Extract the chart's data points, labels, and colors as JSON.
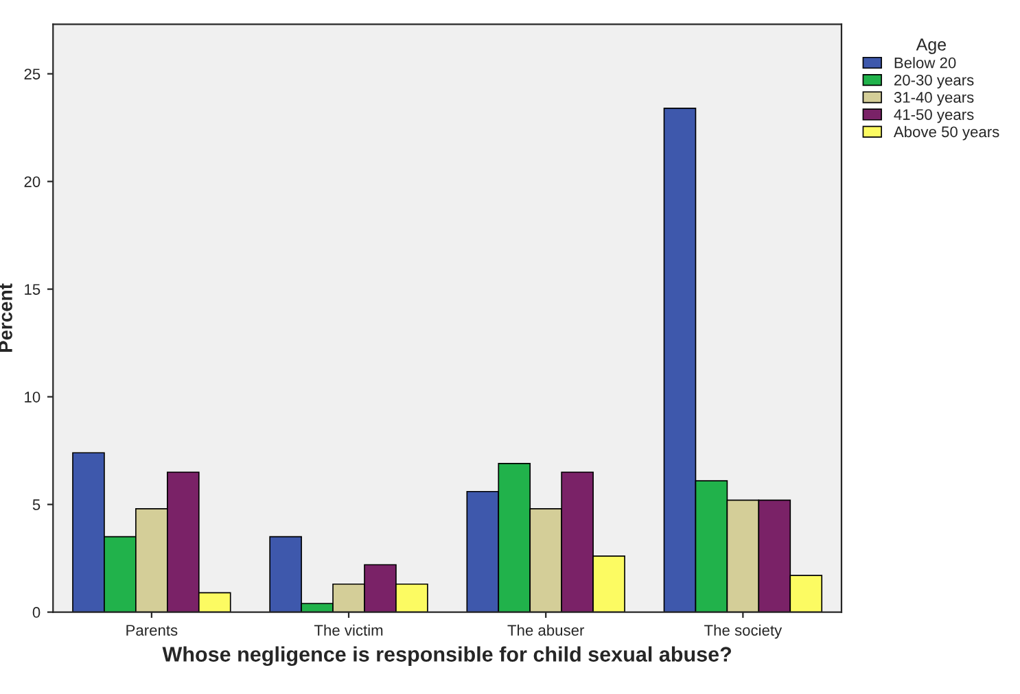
{
  "chart_data": {
    "type": "bar",
    "xlabel": "Whose negligence is responsible for child sexual abuse?",
    "ylabel": "Percent",
    "legend_title": "Age",
    "categories": [
      "Parents",
      "The victim",
      "The abuser",
      "The society"
    ],
    "series": [
      {
        "name": "Below 20",
        "color": "#3e58ac",
        "values": [
          7.4,
          3.5,
          5.6,
          23.4
        ]
      },
      {
        "name": "20-30 years",
        "color": "#21b24b",
        "values": [
          3.5,
          0.4,
          6.9,
          6.1
        ]
      },
      {
        "name": "31-40 years",
        "color": "#d4ce98",
        "values": [
          4.8,
          1.3,
          4.8,
          5.2
        ]
      },
      {
        "name": "41-50 years",
        "color": "#7a2267",
        "values": [
          6.5,
          2.2,
          6.5,
          5.2
        ]
      },
      {
        "name": "Above 50 years",
        "color": "#fcfb62",
        "values": [
          0.9,
          1.3,
          2.6,
          1.7
        ]
      }
    ],
    "ylim": [
      0,
      27.3
    ],
    "yticks": [
      0,
      5,
      10,
      15,
      20,
      25
    ],
    "grid": false,
    "legend": "top right"
  }
}
